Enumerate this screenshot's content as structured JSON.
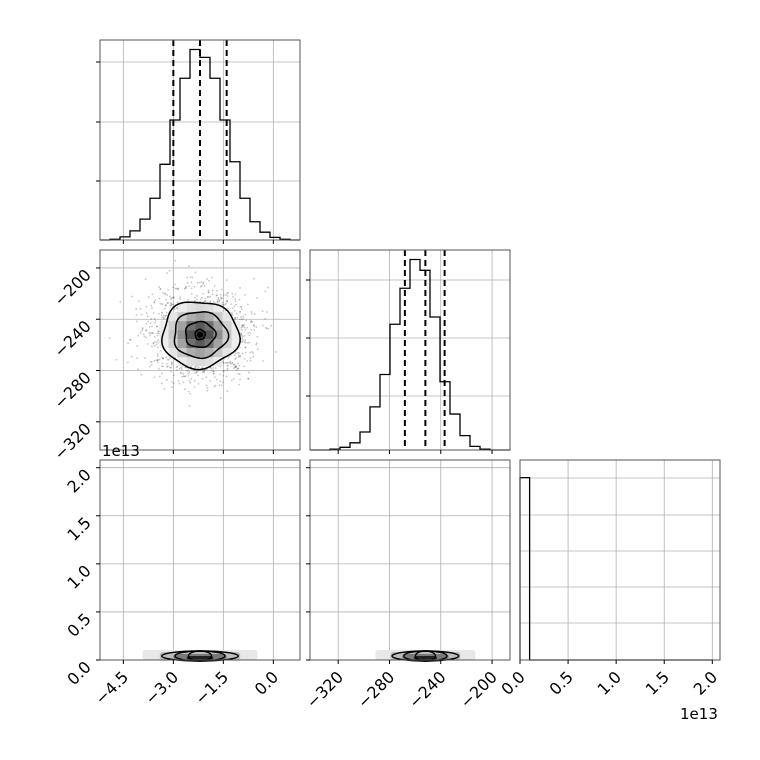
{
  "chart_data": {
    "type": "corner",
    "params": [
      {
        "name": "",
        "range": [
          -5.2,
          0.8
        ],
        "ticks": [
          "−4.5",
          "−3.0",
          "−1.5",
          "0.0"
        ],
        "tick_values": [
          -4.5,
          -3.0,
          -1.5,
          0.0
        ]
      },
      {
        "name": "",
        "range": [
          -342,
          -186
        ],
        "ticks": [
          "−320",
          "−280",
          "−240",
          "−200"
        ],
        "tick_values": [
          -320,
          -280,
          -240,
          -200
        ]
      },
      {
        "name": "",
        "range": [
          0,
          2.08
        ],
        "ticks": [
          "0.0",
          "0.5",
          "1.0",
          "1.5",
          "2.0"
        ],
        "tick_values": [
          0.0,
          0.5,
          1.0,
          1.5,
          2.0
        ],
        "exponent_label": "1e13"
      }
    ],
    "hist1": {
      "bin_edges": [
        -5.2,
        -4.9,
        -4.6,
        -4.3,
        -4.0,
        -3.7,
        -3.4,
        -3.1,
        -2.8,
        -2.5,
        -2.2,
        -1.9,
        -1.6,
        -1.3,
        -1.0,
        -0.7,
        -0.4,
        -0.1,
        0.2,
        0.5,
        0.8
      ],
      "counts": [
        0,
        3,
        12,
        35,
        80,
        160,
        290,
        460,
        620,
        730,
        700,
        620,
        460,
        300,
        160,
        70,
        30,
        10,
        3,
        0
      ],
      "quantiles": [
        -3.0,
        -2.2,
        -1.4
      ]
    },
    "hist2": {
      "bin_edges": [
        -342,
        -334.2,
        -326.4,
        -318.6,
        -310.8,
        -303,
        -295.2,
        -287.4,
        -279.6,
        -271.8,
        -264,
        -256.2,
        -248.4,
        -240.6,
        -232.8,
        -225,
        -217.2,
        -209.4,
        -201.6,
        -193.8,
        -186
      ],
      "counts": [
        0,
        0,
        5,
        15,
        40,
        100,
        240,
        420,
        700,
        900,
        1060,
        1000,
        740,
        380,
        200,
        80,
        20,
        5,
        0,
        0
      ],
      "quantiles": [
        -268,
        -252,
        -237
      ]
    },
    "hist3": {
      "bin_edges": [
        0,
        0.1,
        0.2,
        0.3,
        0.4,
        0.5,
        0.6,
        0.7,
        0.8,
        0.9,
        1.0,
        1.1,
        1.2,
        1.3,
        1.4,
        1.5,
        1.6,
        1.7,
        1.8,
        1.9,
        2.0
      ],
      "counts": [
        1.9,
        0,
        0,
        0,
        0,
        0,
        0,
        0,
        0,
        0,
        0,
        0,
        0,
        0,
        0,
        0,
        0,
        0,
        0,
        0
      ],
      "ylim": [
        0,
        2.0
      ]
    },
    "scatter_2_1": {
      "center": [
        -2.2,
        -252
      ],
      "contour_levels": [
        {
          "radius": [
            1.15,
            26
          ]
        },
        {
          "radius": [
            0.8,
            18
          ]
        },
        {
          "radius": [
            0.45,
            10
          ]
        },
        {
          "radius": [
            0.15,
            4
          ]
        }
      ],
      "n_points": 1800
    },
    "scatter_3_1": {
      "center": [
        -2.2,
        0.03
      ],
      "width": [
        1.15,
        0.05
      ]
    },
    "scatter_3_2": {
      "center": [
        -252,
        0.03
      ],
      "width": [
        26,
        0.05
      ]
    },
    "colors": {
      "line": "#000000",
      "grid": "#b0b0b0",
      "axes": "#000000"
    }
  }
}
